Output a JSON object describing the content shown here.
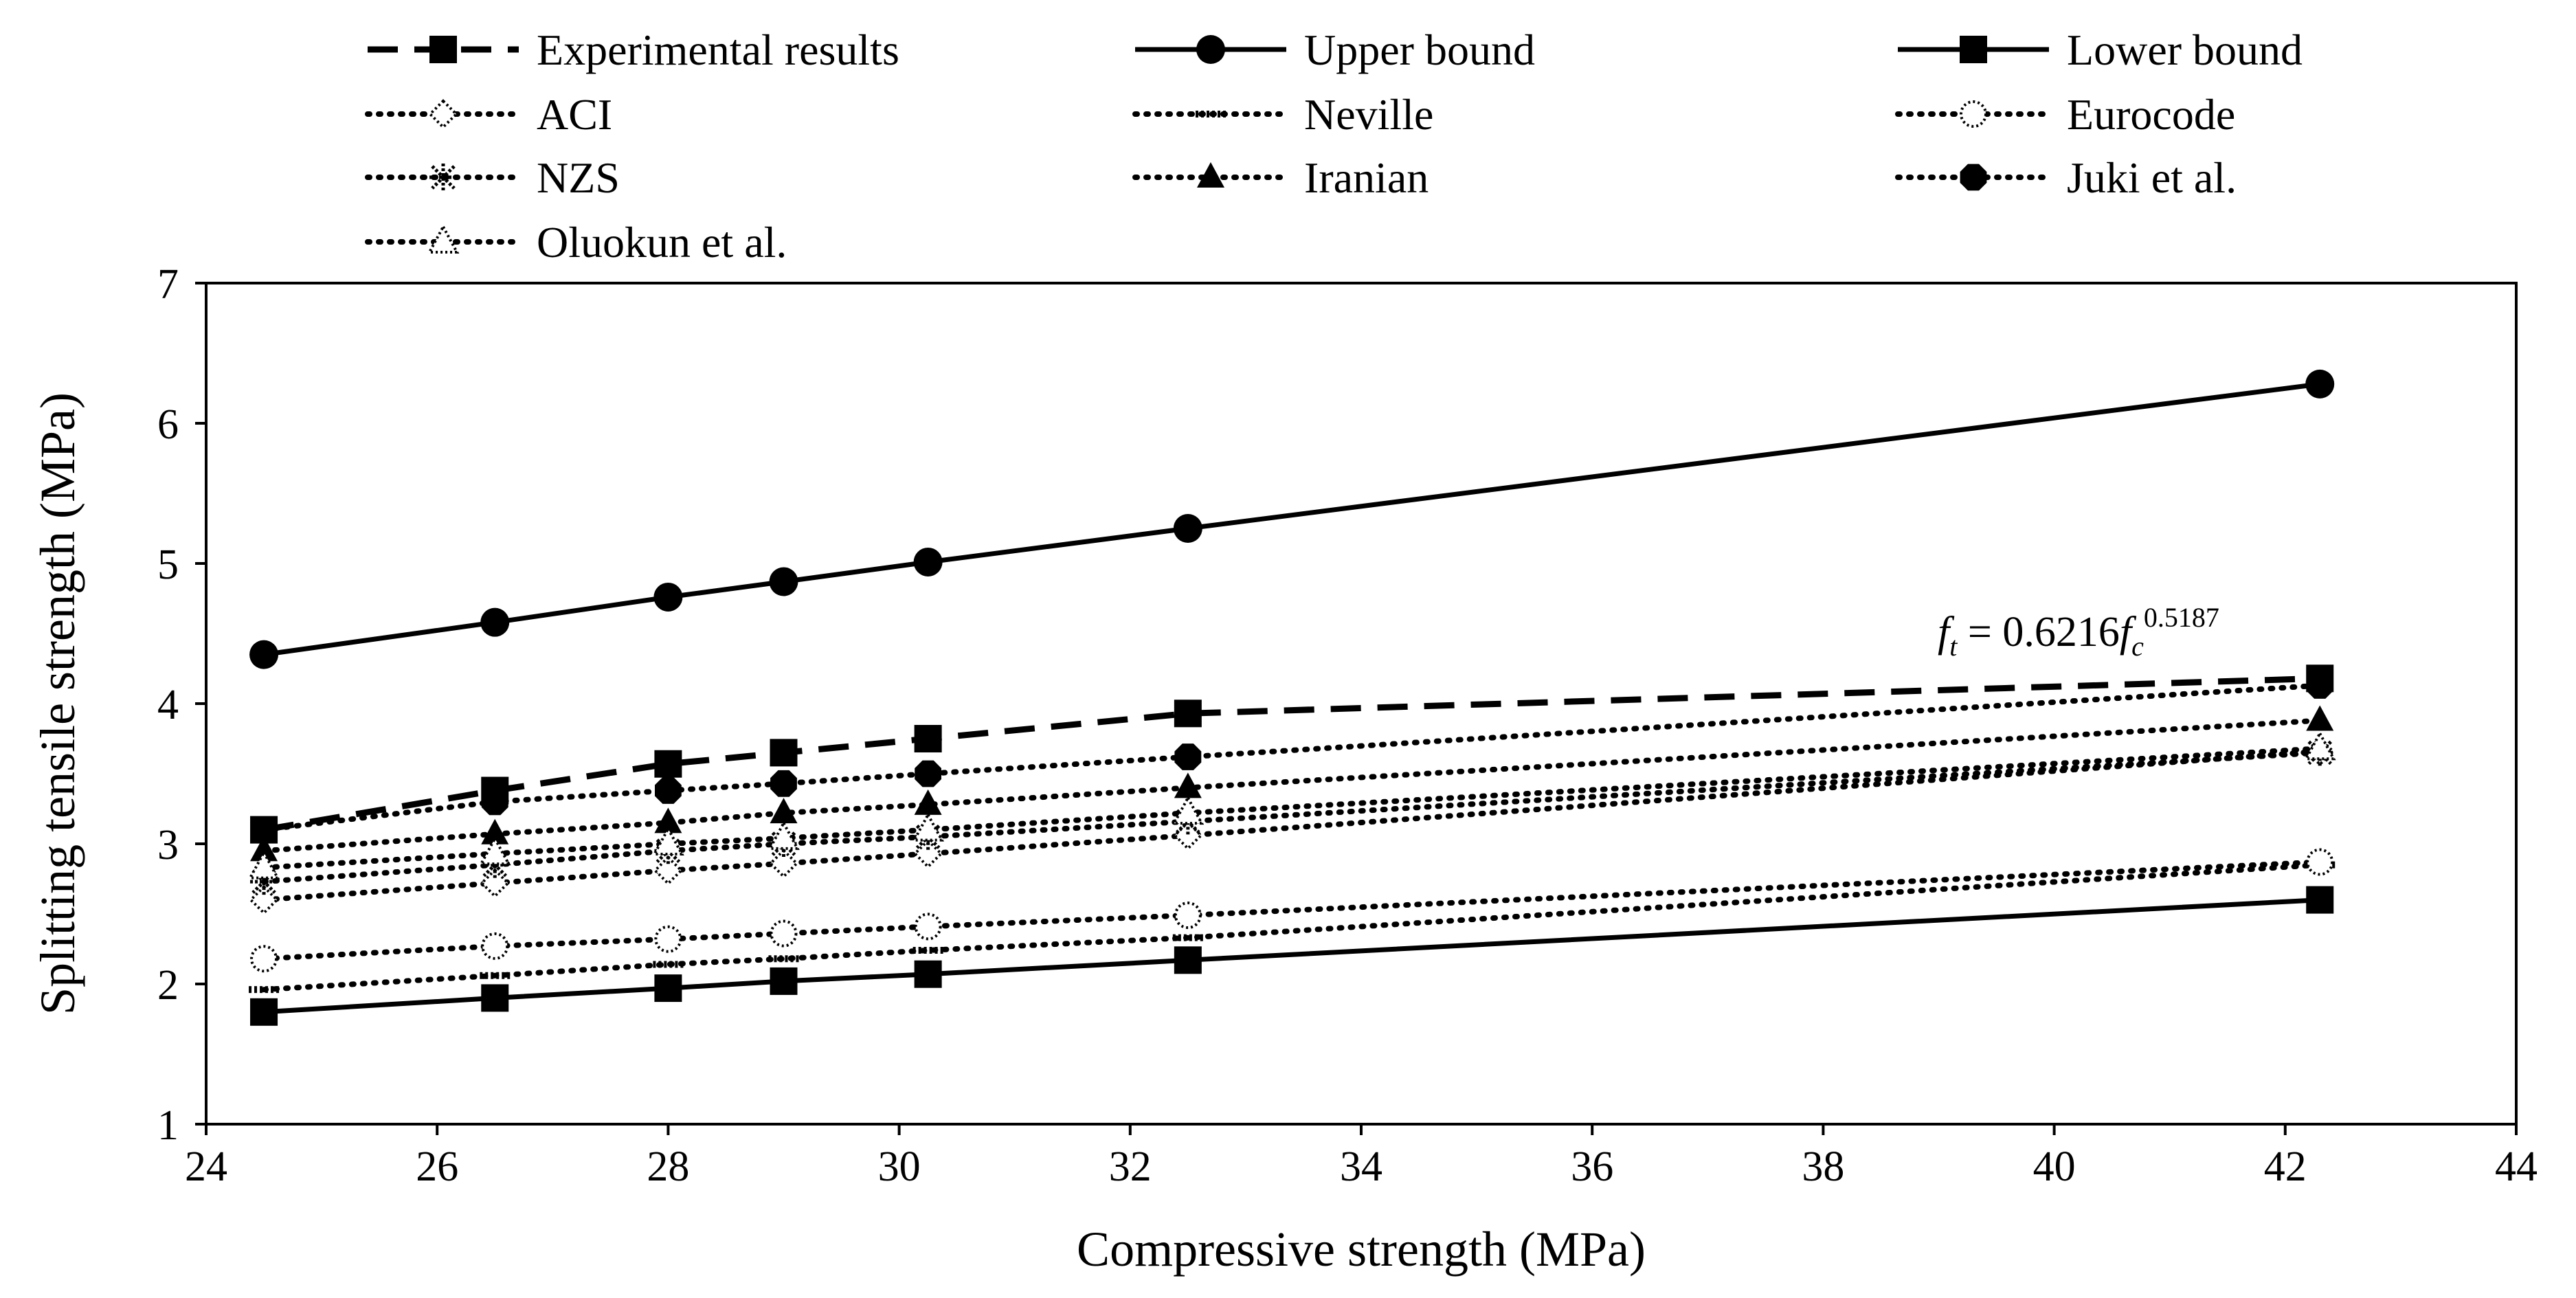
{
  "chart_data": {
    "type": "line",
    "title": "",
    "xlabel": "Compressive strength (MPa)",
    "ylabel": "Splitting tensile strength (MPa)",
    "xlim": [
      24,
      44
    ],
    "ylim": [
      1,
      7
    ],
    "xticks": [
      "24",
      "26",
      "28",
      "30",
      "32",
      "34",
      "36",
      "38",
      "40",
      "42",
      "44"
    ],
    "yticks": [
      "1",
      "2",
      "3",
      "4",
      "5",
      "6",
      "7"
    ],
    "grid": false,
    "legend_position": "top",
    "x": [
      24.5,
      26.5,
      28.0,
      29.0,
      30.25,
      32.5,
      42.3
    ],
    "series": [
      {
        "name": "Experimental results",
        "style": "dashed",
        "marker": "square",
        "values": [
          3.1,
          3.38,
          3.57,
          3.65,
          3.75,
          3.93,
          4.18
        ]
      },
      {
        "name": "Upper bound",
        "style": "solid",
        "marker": "circle",
        "values": [
          4.35,
          4.58,
          4.76,
          4.87,
          5.01,
          5.25,
          6.28
        ]
      },
      {
        "name": "Lower bound",
        "style": "solid",
        "marker": "square",
        "values": [
          1.8,
          1.9,
          1.97,
          2.02,
          2.07,
          2.17,
          2.6
        ]
      },
      {
        "name": "ACI",
        "style": "dotted",
        "marker": "open-diamond",
        "values": [
          2.6,
          2.72,
          2.81,
          2.86,
          2.93,
          3.06,
          3.66
        ]
      },
      {
        "name": "Neville",
        "style": "dotted",
        "marker": "dash",
        "values": [
          1.96,
          2.06,
          2.14,
          2.18,
          2.24,
          2.33,
          2.85
        ]
      },
      {
        "name": "Eurocode",
        "style": "dotted",
        "marker": "open-circle",
        "values": [
          2.18,
          2.27,
          2.32,
          2.36,
          2.41,
          2.49,
          2.87
        ]
      },
      {
        "name": "NZS",
        "style": "dotted",
        "marker": "star",
        "values": [
          2.73,
          2.85,
          2.95,
          3.0,
          3.05,
          3.16,
          3.65
        ]
      },
      {
        "name": "Iranian",
        "style": "dotted",
        "marker": "triangle",
        "values": [
          2.95,
          3.07,
          3.15,
          3.22,
          3.28,
          3.4,
          3.88
        ]
      },
      {
        "name": "Juki et al.",
        "style": "dotted",
        "marker": "filled-octagon",
        "values": [
          3.1,
          3.3,
          3.38,
          3.43,
          3.5,
          3.62,
          4.13
        ]
      },
      {
        "name": "Oluokun et al.",
        "style": "dotted",
        "marker": "open-triangle",
        "values": [
          2.83,
          2.93,
          3.0,
          3.04,
          3.1,
          3.22,
          3.68
        ]
      }
    ],
    "annotation": {
      "base": "f",
      "base_sub": "t",
      "eq": " = 0.6216",
      "f2": "f",
      "f2_sub": "c",
      "exp": "0.5187",
      "near": "Experimental results"
    }
  }
}
